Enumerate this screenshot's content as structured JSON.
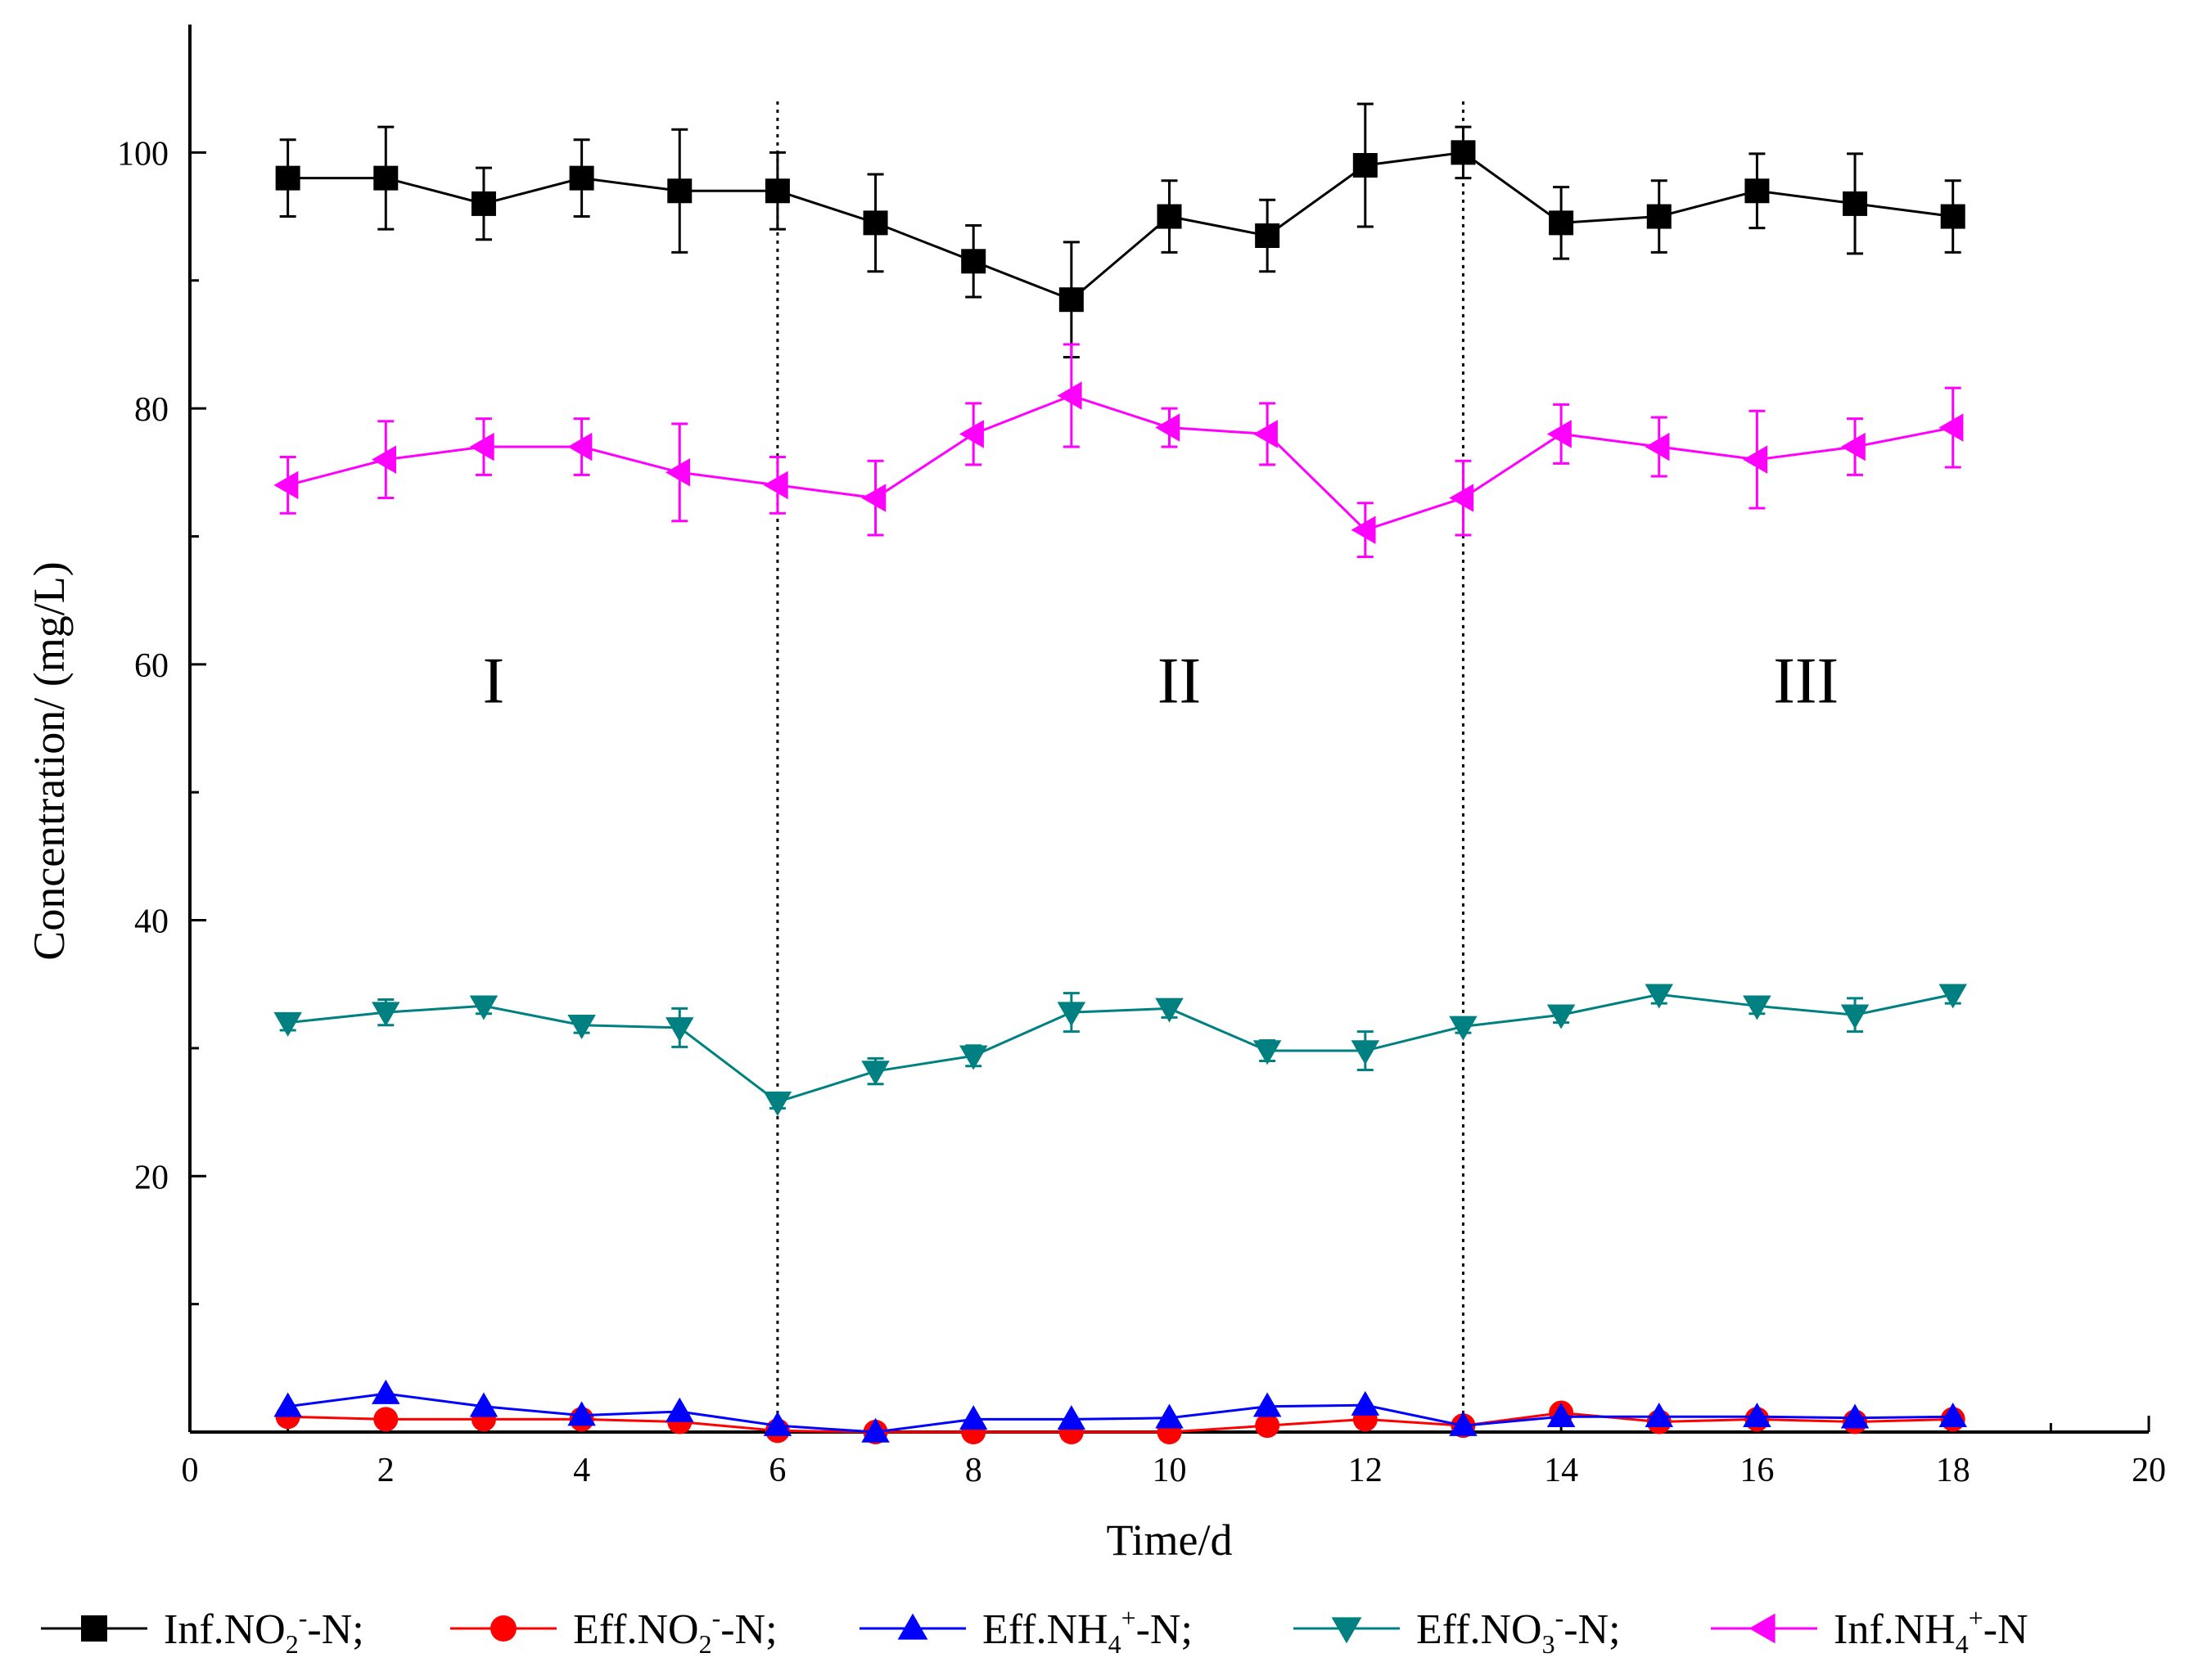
{
  "chart_data": {
    "type": "line",
    "xlabel": "Time/d",
    "ylabel": "Concentration/ (mg/L)",
    "xlim": [
      0,
      20
    ],
    "ylim": [
      0,
      110
    ],
    "xticks": [
      0,
      2,
      4,
      6,
      8,
      10,
      12,
      14,
      16,
      18,
      20
    ],
    "xtick_labels": [
      "0",
      "2",
      "4",
      "6",
      "8",
      "10",
      "12",
      "14",
      "16",
      "18",
      "20"
    ],
    "yticks": [
      20,
      40,
      60,
      80,
      100
    ],
    "ytick_labels": [
      "20",
      "40",
      "60",
      "80",
      "100"
    ],
    "phase_dividers": [
      6,
      13
    ],
    "phases": [
      {
        "label": "I",
        "x": 3.1,
        "y": 57
      },
      {
        "label": "II",
        "x": 10.1,
        "y": 57
      },
      {
        "label": "III",
        "x": 16.5,
        "y": 57
      }
    ],
    "x": [
      1,
      2,
      3,
      4,
      5,
      6,
      7,
      8,
      9,
      10,
      11,
      12,
      13,
      14,
      15,
      16,
      17,
      18
    ],
    "series": [
      {
        "name": "Inf.NO2-N",
        "legend": {
          "pre": "Inf.NO",
          "sub": "2",
          "sup": "-",
          "post": "-N;"
        },
        "color": "#000000",
        "marker": "square",
        "values": [
          98,
          98,
          96,
          98,
          97,
          97,
          94.5,
          91.5,
          88.5,
          95,
          93.5,
          99,
          100,
          94.5,
          95,
          97,
          96,
          95
        ],
        "errors": [
          3,
          4,
          2.8,
          3,
          4.8,
          3,
          3.8,
          2.8,
          4.5,
          2.8,
          2.8,
          4.8,
          2,
          2.8,
          2.8,
          2.9,
          3.9,
          2.8
        ]
      },
      {
        "name": "Eff.NO2-N",
        "legend": {
          "pre": "Eff.NO",
          "sub": "2",
          "sup": "-",
          "post": "-N;"
        },
        "color": "#ff0000",
        "marker": "circle",
        "values": [
          1.2,
          1,
          1,
          1,
          0.8,
          0.1,
          0,
          0,
          0,
          0,
          0.5,
          1,
          0.5,
          1.5,
          0.8,
          1,
          0.8,
          1
        ],
        "errors": [
          0,
          0,
          0,
          0,
          0,
          0,
          0,
          0,
          0,
          0,
          0,
          0,
          0,
          0,
          0,
          0,
          0,
          0
        ]
      },
      {
        "name": "Eff.NH4+-N",
        "legend": {
          "pre": "Eff.NH",
          "sub": "4",
          "sup": "+",
          "post": "-N;"
        },
        "color": "#0000ff",
        "marker": "triangle-up",
        "values": [
          2,
          3,
          2,
          1.3,
          1.6,
          0.5,
          0,
          1,
          1,
          1.1,
          2,
          2.1,
          0.5,
          1.2,
          1.2,
          1.2,
          1.1,
          1.2
        ],
        "errors": [
          0,
          0,
          0,
          0,
          0,
          0,
          0,
          0,
          0,
          0,
          0,
          0,
          0,
          0,
          0,
          0,
          0,
          0
        ]
      },
      {
        "name": "Eff.NO3-N",
        "legend": {
          "pre": "Eff.NO",
          "sub": "3",
          "sup": "-",
          "post": "-N;"
        },
        "color": "#008080",
        "marker": "triangle-down",
        "values": [
          32,
          32.8,
          33.3,
          31.8,
          31.6,
          25.8,
          28.2,
          29.4,
          32.8,
          33.1,
          29.8,
          29.8,
          31.7,
          32.6,
          34.2,
          33.3,
          32.6,
          34.2
        ],
        "errors": [
          0.6,
          1,
          0.6,
          0.6,
          1.5,
          0.5,
          1,
          0.8,
          1.5,
          0.7,
          0.8,
          1.5,
          0.5,
          0.6,
          0.7,
          0.6,
          1.3,
          0.7
        ]
      },
      {
        "name": "Inf.NH4+-N",
        "legend": {
          "pre": "Inf.NH",
          "sub": "4",
          "sup": "+",
          "post": "-N"
        },
        "color": "#ff00ff",
        "marker": "triangle-left",
        "values": [
          74,
          76,
          77,
          77,
          75,
          74,
          73,
          78,
          81,
          78.5,
          78,
          70.5,
          73,
          78,
          77,
          76,
          77,
          78.5
        ],
        "errors": [
          2.2,
          3,
          2.2,
          2.2,
          3.8,
          2.2,
          2.9,
          2.4,
          4,
          1.5,
          2.4,
          2.1,
          2.9,
          2.3,
          2.3,
          3.8,
          2.2,
          3.1
        ]
      }
    ]
  }
}
